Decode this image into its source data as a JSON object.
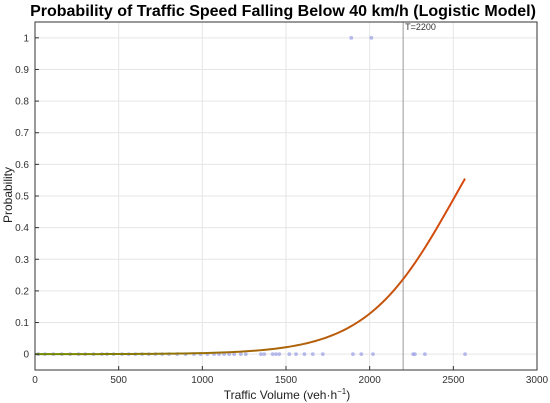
{
  "chart_data": {
    "type": "scatter",
    "title": "Probability of Traffic Speed Falling Below 40 km/h (Logistic Model)",
    "xlabel": "Traffic  Volume  (veh·h",
    "xlabel_sup": "−1",
    "xlabel_close": ")",
    "ylabel": "Probability",
    "xlim": [
      0,
      3000
    ],
    "ylim": [
      -0.05,
      1.05
    ],
    "xticks": [
      "0",
      "500",
      "1000",
      "1500",
      "2000",
      "2500",
      "3000"
    ],
    "xtick_values": [
      0,
      500,
      1000,
      1500,
      2000,
      2500,
      3000
    ],
    "yticks": [
      "0",
      "0.1",
      "0.2",
      "0.3",
      "0.4",
      "0.5",
      "0.6",
      "0.7",
      "0.8",
      "0.9",
      "1"
    ],
    "ytick_values": [
      0,
      0.1,
      0.2,
      0.3,
      0.4,
      0.5,
      0.6,
      0.7,
      0.8,
      0.9,
      1
    ],
    "grid": true,
    "threshold": {
      "x": 2200,
      "label": "T=2200"
    },
    "points": {
      "color": "#9aa0e6",
      "x": [
        20,
        60,
        110,
        160,
        210,
        260,
        300,
        350,
        400,
        430,
        470,
        520,
        560,
        600,
        640,
        680,
        720,
        760,
        800,
        850,
        900,
        950,
        990,
        1030,
        1070,
        1100,
        1130,
        1160,
        1190,
        1230,
        1260,
        1350,
        1370,
        1420,
        1440,
        1460,
        1520,
        1560,
        1610,
        1660,
        1720,
        1900,
        1950,
        2020,
        2260,
        2270,
        2330,
        2570,
        1890,
        2010
      ],
      "y": [
        0,
        0,
        0,
        0,
        0,
        0,
        0,
        0,
        0,
        0,
        0,
        0,
        0,
        0,
        0,
        0,
        0,
        0,
        0,
        0,
        0,
        0,
        0,
        0,
        0,
        0,
        0,
        0,
        0,
        0,
        0,
        0,
        0,
        0,
        0,
        0,
        0,
        0,
        0,
        0,
        0,
        0,
        0,
        0,
        0,
        0,
        0,
        0,
        1,
        1
      ]
    },
    "curve": {
      "type": "logistic",
      "x_range": [
        0,
        2570
      ],
      "x_at_p": [
        [
          1500,
          0.022
        ],
        [
          2200,
          0.25
        ],
        [
          2570,
          0.555
        ]
      ],
      "color_start": "#6f8a00",
      "color_end": "#d9480f"
    }
  }
}
